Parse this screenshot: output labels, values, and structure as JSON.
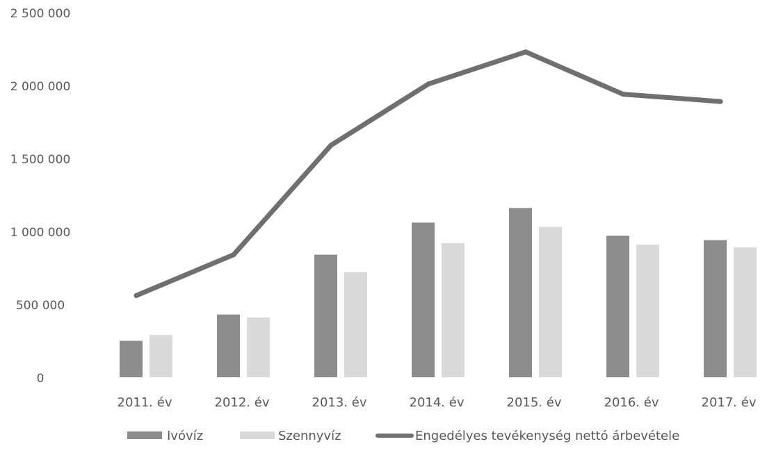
{
  "chart_data": {
    "type": "bar",
    "categories": [
      "2011. év",
      "2012. év",
      "2013. év",
      "2014. év",
      "2015. év",
      "2016. év",
      "2017. év"
    ],
    "series": [
      {
        "name": "Ivóvíz",
        "type": "bar",
        "color": "#8c8c8c",
        "values": [
          250000,
          430000,
          840000,
          1060000,
          1160000,
          970000,
          940000
        ]
      },
      {
        "name": "Szennyvíz",
        "type": "bar",
        "color": "#d9d9d9",
        "values": [
          290000,
          410000,
          720000,
          920000,
          1030000,
          910000,
          890000
        ]
      },
      {
        "name": "Engedélyes tevékenység nettó árbevétele",
        "type": "line",
        "color": "#6f6f6f",
        "values": [
          560000,
          840000,
          1590000,
          2010000,
          2230000,
          1940000,
          1890000
        ]
      }
    ],
    "ylim": [
      0,
      2500000
    ],
    "yticks": [
      0,
      500000,
      1000000,
      1500000,
      2000000,
      2500000
    ],
    "ytick_labels": [
      "0",
      "500 000",
      "1 000 000",
      "1 500 000",
      "2 000 000",
      "2 500 000"
    ],
    "xlabel": "",
    "ylabel": "",
    "grid": false,
    "legend_position": "bottom"
  }
}
